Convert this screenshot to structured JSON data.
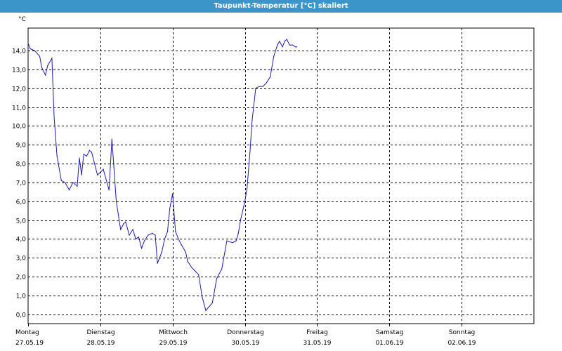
{
  "window": {
    "title": "Taupunkt-Temperatur [°C] skaliert"
  },
  "colors": {
    "title_bar": "#3c95c9",
    "series_line": "#1c1ca8",
    "grid": "#000000"
  },
  "chart_data": {
    "type": "line",
    "title": "",
    "unit_label": "°C",
    "ylim": [
      -0.5,
      15.2
    ],
    "y_ticks": [
      "0,0",
      "1,0",
      "2,0",
      "3,0",
      "4,0",
      "5,0",
      "6,0",
      "7,0",
      "8,0",
      "9,0",
      "10,0",
      "11,0",
      "12,0",
      "13,0",
      "14,0"
    ],
    "y_tick_values": [
      0,
      1,
      2,
      3,
      4,
      5,
      6,
      7,
      8,
      9,
      10,
      11,
      12,
      13,
      14
    ],
    "x_range_days": [
      0,
      7
    ],
    "x_days": [
      {
        "day": "Montag",
        "date": "27.05.19"
      },
      {
        "day": "Dienstag",
        "date": "28.05.19"
      },
      {
        "day": "Mittwoch",
        "date": "29.05.19"
      },
      {
        "day": "Donnerstag",
        "date": "30.05.19"
      },
      {
        "day": "Freitag",
        "date": "31.05.19"
      },
      {
        "day": "Samstag",
        "date": "01.06.19"
      },
      {
        "day": "Sonntag",
        "date": "02.06.19"
      }
    ],
    "grid": true,
    "series": [
      {
        "x": [
          0.0,
          0.03,
          0.09,
          0.16,
          0.19,
          0.24,
          0.27,
          0.33,
          0.36,
          0.4,
          0.46,
          0.51,
          0.57,
          0.62,
          0.68,
          0.71,
          0.74,
          0.77,
          0.81,
          0.85,
          0.88,
          0.96,
          0.99,
          1.04,
          1.12,
          1.16,
          1.22,
          1.28,
          1.32,
          1.35,
          1.4,
          1.45,
          1.49,
          1.53,
          1.57,
          1.61,
          1.66,
          1.72,
          1.76,
          1.79,
          1.85,
          1.89,
          1.93,
          1.96,
          2.0,
          2.04,
          2.08,
          2.12,
          2.18,
          2.21,
          2.26,
          2.31,
          2.36,
          2.41,
          2.46,
          2.55,
          2.61,
          2.68,
          2.75,
          2.83,
          2.88,
          2.91,
          2.94,
          3.0,
          3.03,
          3.07,
          3.1,
          3.15,
          3.2,
          3.25,
          3.3,
          3.35,
          3.4,
          3.45,
          3.48,
          3.52,
          3.55,
          3.58,
          3.62,
          3.66,
          3.7,
          3.72
        ],
        "y": [
          14.4,
          14.1,
          14.0,
          13.7,
          13.1,
          12.7,
          13.2,
          13.6,
          10.5,
          8.4,
          7.1,
          7.0,
          6.6,
          7.0,
          6.8,
          8.3,
          7.4,
          8.5,
          8.4,
          8.7,
          8.6,
          7.4,
          7.5,
          7.7,
          6.6,
          9.3,
          6.0,
          4.5,
          4.8,
          4.9,
          4.2,
          4.5,
          4.0,
          4.1,
          3.5,
          3.9,
          4.2,
          4.3,
          4.2,
          2.7,
          3.3,
          4.0,
          4.4,
          5.6,
          6.4,
          4.4,
          4.0,
          3.7,
          3.3,
          2.8,
          2.5,
          2.3,
          2.1,
          0.9,
          0.2,
          0.6,
          1.9,
          2.4,
          3.9,
          3.8,
          3.9,
          4.3,
          5.0,
          6.0,
          6.7,
          8.6,
          10.3,
          12.0,
          12.1,
          12.1,
          12.3,
          12.6,
          13.7,
          14.3,
          14.5,
          14.2,
          14.5,
          14.6,
          14.3,
          14.3,
          14.2,
          14.2
        ]
      }
    ]
  }
}
